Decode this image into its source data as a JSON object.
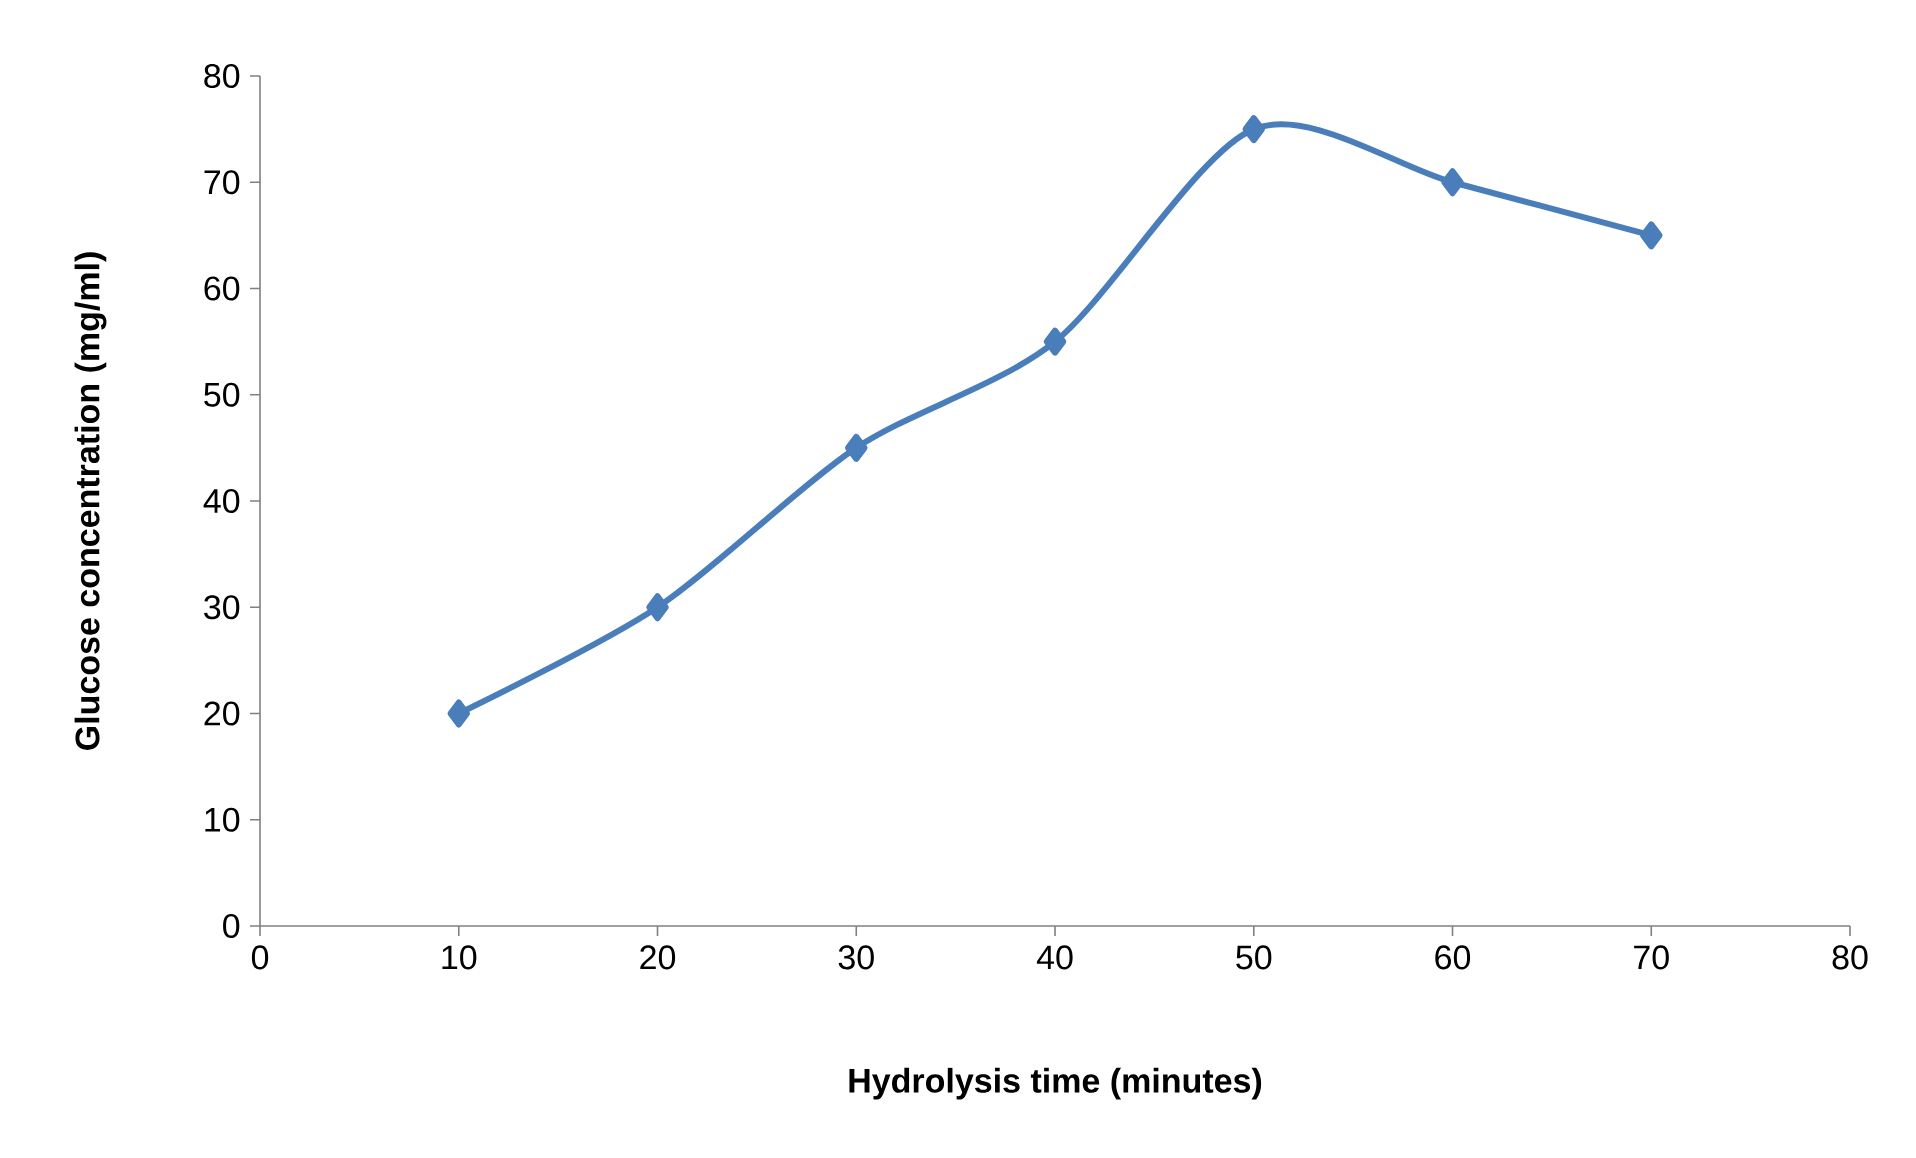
{
  "chart_data": {
    "type": "line",
    "xlabel": "Hydrolysis time (minutes)",
    "ylabel": "Glucose concentration (mg/ml)",
    "x": [
      10,
      20,
      30,
      40,
      50,
      60,
      70
    ],
    "series": [
      {
        "color": "#4a7ebb",
        "values": [
          20,
          30,
          45,
          55,
          75,
          70,
          65
        ]
      }
    ],
    "xlim": [
      0,
      80
    ],
    "ylim": [
      0,
      80
    ],
    "xticks": [
      0,
      10,
      20,
      30,
      40,
      50,
      60,
      70,
      80
    ],
    "yticks": [
      0,
      10,
      20,
      30,
      40,
      50,
      60,
      70,
      80
    ],
    "marker": "diamond",
    "line_style": "solid"
  }
}
